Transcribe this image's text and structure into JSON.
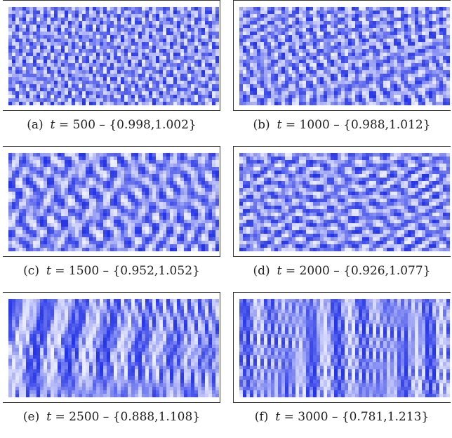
{
  "panels": [
    {
      "label": "(a)",
      "t_value": "500",
      "range": "{0.998,1.002}",
      "mode": "spots",
      "scale": 13,
      "seed": 3
    },
    {
      "label": "(b)",
      "t_value": "1000",
      "range": "{0.988,1.012}",
      "mode": "spots",
      "scale": 17,
      "seed": 7
    },
    {
      "label": "(c)",
      "t_value": "1500",
      "range": "{0.952,1.052}",
      "mode": "worms",
      "scale": 19,
      "seed": 11
    },
    {
      "label": "(d)",
      "t_value": "2000",
      "range": "{0.926,1.077}",
      "mode": "worms",
      "scale": 17,
      "seed": 19
    },
    {
      "label": "(e)",
      "t_value": "2500",
      "range": "{0.888,1.108}",
      "mode": "stripes",
      "scale": 14,
      "seed": 23
    },
    {
      "label": "(f)",
      "t_value": "3000",
      "range": "{0.781,1.213}",
      "mode": "stripes",
      "scale": 11,
      "seed": 29
    }
  ],
  "colors": {
    "low": "#1f2fe6",
    "high": "#f4f5ff"
  }
}
